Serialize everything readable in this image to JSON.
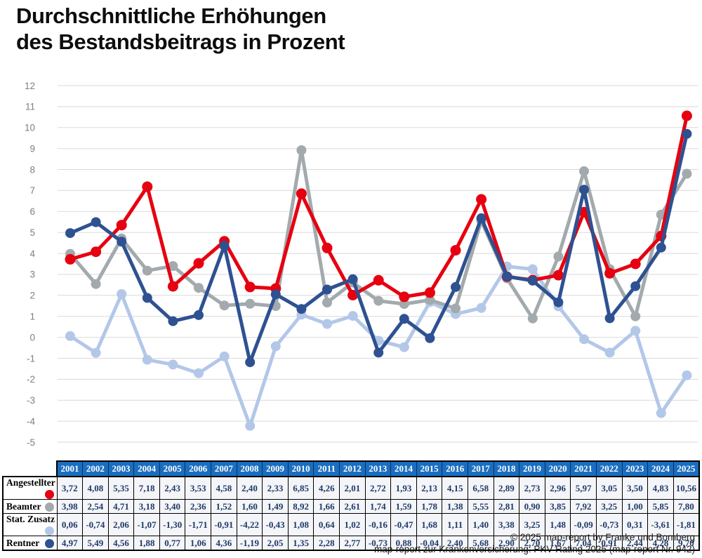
{
  "title": {
    "line1": "Durchschnittliche Erhöhungen",
    "line2": "des Bestandsbeitrags in Prozent"
  },
  "chart_data": {
    "type": "line",
    "title": "Durchschnittliche Erhöhungen des Bestandsbeitrags in Prozent",
    "x": [
      2001,
      2002,
      2003,
      2004,
      2005,
      2006,
      2007,
      2008,
      2009,
      2010,
      2011,
      2012,
      2013,
      2014,
      2015,
      2016,
      2017,
      2018,
      2019,
      2020,
      2021,
      2022,
      2023,
      2024,
      2025
    ],
    "series": [
      {
        "name": "Angestellter",
        "color": "#e60010",
        "values": [
          3.72,
          4.08,
          5.35,
          7.18,
          2.43,
          3.53,
          4.58,
          2.4,
          2.33,
          6.85,
          4.26,
          2.01,
          2.72,
          1.93,
          2.13,
          4.15,
          6.58,
          2.89,
          2.73,
          2.96,
          5.97,
          3.05,
          3.5,
          4.83,
          10.56
        ]
      },
      {
        "name": "Beamter",
        "color": "#a2aaae",
        "values": [
          3.98,
          2.54,
          4.71,
          3.18,
          3.4,
          2.36,
          1.52,
          1.6,
          1.49,
          8.92,
          1.66,
          2.61,
          1.74,
          1.59,
          1.78,
          1.38,
          5.55,
          2.81,
          0.9,
          3.85,
          7.92,
          3.25,
          1.0,
          5.85,
          7.8
        ]
      },
      {
        "name": "Stat. Zusatz",
        "color": "#b3c7e8",
        "values": [
          0.06,
          -0.74,
          2.06,
          -1.07,
          -1.3,
          -1.71,
          -0.91,
          -4.22,
          -0.43,
          1.08,
          0.64,
          1.02,
          -0.16,
          -0.47,
          1.68,
          1.11,
          1.4,
          3.38,
          3.25,
          1.48,
          -0.09,
          -0.73,
          0.31,
          -3.61,
          -1.81
        ]
      },
      {
        "name": "Rentner",
        "color": "#2e5191",
        "values": [
          4.97,
          5.49,
          4.56,
          1.88,
          0.77,
          1.06,
          4.36,
          -1.19,
          2.05,
          1.35,
          2.28,
          2.77,
          -0.73,
          0.88,
          -0.04,
          2.4,
          5.68,
          2.9,
          2.7,
          1.67,
          7.04,
          0.91,
          2.44,
          4.28,
          9.7
        ]
      }
    ],
    "draw_order": [
      "Stat. Zusatz",
      "Beamter",
      "Angestellter",
      "Rentner"
    ],
    "ylim": [
      -5,
      12
    ],
    "ytick_step": 1,
    "yticks": [
      12,
      11,
      10,
      9,
      8,
      7,
      6,
      5,
      4,
      3,
      2,
      1,
      0,
      -1,
      -2,
      -3,
      -4,
      -5
    ],
    "grid": "horizontal-only",
    "gridline_color": "#d9d9d9",
    "tick_label_color": "#7f7f7f",
    "legend_position": "table-below-with-row-dots",
    "number_format": "comma-decimal, 2 digits"
  },
  "footer": {
    "line1": "© 2025 map-report by Franke und Bornberg",
    "line2": "map-report zur Krankenversicherung: PKV-Rating 2025 (map-report Nr. 942)"
  }
}
